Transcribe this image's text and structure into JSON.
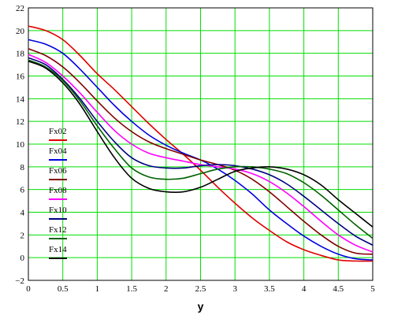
{
  "chart_data": {
    "type": "line",
    "xlabel": "y",
    "ylabel": "",
    "xlim": [
      0,
      5
    ],
    "ylim": [
      -2,
      22
    ],
    "xticks": [
      "0",
      "0.5",
      "1",
      "1.5",
      "2",
      "2.5",
      "3",
      "3.5",
      "4",
      "4.5",
      "5"
    ],
    "yticks": [
      "−2",
      "0",
      "2",
      "4",
      "6",
      "8",
      "10",
      "12",
      "14",
      "16",
      "18",
      "20",
      "22"
    ],
    "grid": true,
    "grid_color": "#00e000",
    "legend_position": "left-middle",
    "series": [
      {
        "name": "Fx02",
        "color": "#e00000",
        "x": [
          0,
          0.25,
          0.5,
          0.75,
          1,
          1.25,
          1.5,
          1.75,
          2,
          2.25,
          2.5,
          2.75,
          3,
          3.25,
          3.5,
          3.75,
          4,
          4.25,
          4.5,
          4.75,
          5
        ],
        "y": [
          20.4,
          20.0,
          19.2,
          17.8,
          16.2,
          14.8,
          13.3,
          11.8,
          10.4,
          9.1,
          7.7,
          6.2,
          4.8,
          3.5,
          2.4,
          1.4,
          0.7,
          0.2,
          -0.2,
          -0.3,
          -0.3
        ]
      },
      {
        "name": "Fx04",
        "color": "#0000e0",
        "x": [
          0,
          0.25,
          0.5,
          0.75,
          1,
          1.25,
          1.5,
          1.75,
          2,
          2.25,
          2.5,
          2.75,
          3,
          3.25,
          3.5,
          3.75,
          4,
          4.25,
          4.5,
          4.75,
          5
        ],
        "y": [
          19.2,
          18.8,
          18.0,
          16.6,
          15.0,
          13.4,
          12.0,
          10.8,
          9.9,
          9.2,
          8.6,
          7.8,
          6.8,
          5.6,
          4.2,
          3.0,
          1.9,
          1.0,
          0.3,
          -0.1,
          -0.2
        ]
      },
      {
        "name": "Fx06",
        "color": "#800000",
        "x": [
          0,
          0.25,
          0.5,
          0.75,
          1,
          1.25,
          1.5,
          1.75,
          2,
          2.25,
          2.5,
          2.75,
          3,
          3.25,
          3.5,
          3.75,
          4,
          4.25,
          4.5,
          4.75,
          5
        ],
        "y": [
          18.4,
          17.8,
          16.8,
          15.4,
          13.8,
          12.3,
          11.1,
          10.2,
          9.6,
          9.1,
          8.6,
          8.2,
          7.7,
          6.9,
          5.8,
          4.5,
          3.2,
          2.0,
          1.0,
          0.4,
          0.3
        ]
      },
      {
        "name": "Fx08",
        "color": "#ff00ff",
        "x": [
          0,
          0.25,
          0.5,
          0.75,
          1,
          1.25,
          1.5,
          1.75,
          2,
          2.25,
          2.5,
          2.75,
          3,
          3.25,
          3.5,
          3.75,
          4,
          4.25,
          4.5,
          4.75,
          5
        ],
        "y": [
          17.9,
          17.2,
          16.0,
          14.5,
          12.8,
          11.2,
          10.0,
          9.2,
          8.8,
          8.5,
          8.2,
          8.0,
          7.8,
          7.4,
          6.7,
          5.7,
          4.5,
          3.2,
          2.0,
          1.1,
          0.5
        ]
      },
      {
        "name": "Fx10",
        "color": "#000080",
        "x": [
          0,
          0.25,
          0.5,
          0.75,
          1,
          1.25,
          1.5,
          1.75,
          2,
          2.25,
          2.5,
          2.75,
          3,
          3.25,
          3.5,
          3.75,
          4,
          4.25,
          4.5,
          4.75,
          5
        ],
        "y": [
          17.6,
          17.0,
          15.7,
          14.0,
          12.0,
          10.2,
          8.8,
          8.1,
          7.9,
          7.9,
          8.1,
          8.2,
          8.1,
          7.8,
          7.3,
          6.5,
          5.4,
          4.2,
          3.0,
          1.9,
          1.1
        ]
      },
      {
        "name": "Fx12",
        "color": "#006000",
        "x": [
          0,
          0.25,
          0.5,
          0.75,
          1,
          1.25,
          1.5,
          1.75,
          2,
          2.25,
          2.5,
          2.75,
          3,
          3.25,
          3.5,
          3.75,
          4,
          4.25,
          4.5,
          4.75,
          5
        ],
        "y": [
          17.4,
          16.8,
          15.6,
          13.8,
          11.6,
          9.6,
          7.9,
          7.1,
          6.9,
          7.0,
          7.4,
          7.8,
          8.0,
          8.0,
          7.8,
          7.4,
          6.6,
          5.5,
          4.2,
          2.9,
          1.7
        ]
      },
      {
        "name": "Fx14",
        "color": "#000000",
        "x": [
          0,
          0.25,
          0.5,
          0.75,
          1,
          1.25,
          1.5,
          1.75,
          2,
          2.25,
          2.5,
          2.75,
          3,
          3.25,
          3.5,
          3.75,
          4,
          4.25,
          4.5,
          4.75,
          5
        ],
        "y": [
          17.3,
          16.7,
          15.4,
          13.5,
          11.1,
          8.8,
          7.0,
          6.1,
          5.8,
          5.8,
          6.2,
          6.9,
          7.6,
          7.9,
          8.0,
          7.8,
          7.3,
          6.4,
          5.1,
          3.9,
          2.7
        ]
      }
    ]
  }
}
